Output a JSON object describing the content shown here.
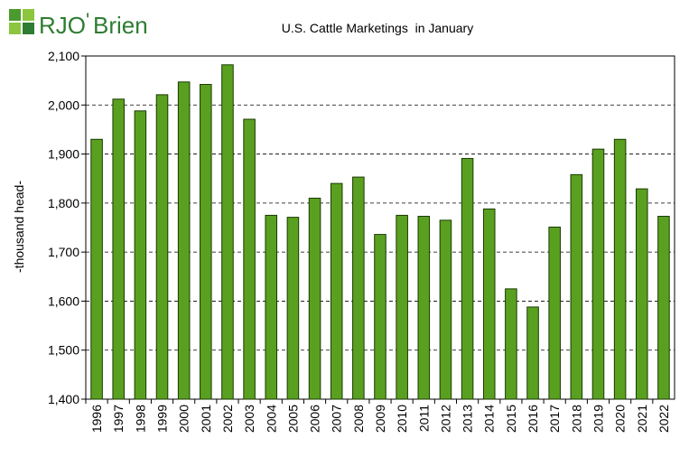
{
  "logo": {
    "text_rj": "RJO",
    "text_apostrophe": "'",
    "text_brien": "Brien",
    "mark_color": "#4a9a2e",
    "text_color": "#2e7d32"
  },
  "chart_data": {
    "type": "bar",
    "title": "U.S. Cattle Marketings  in January",
    "ylabel": "-thousand head-",
    "xlabel": "",
    "categories": [
      "1996",
      "1997",
      "1998",
      "1999",
      "2000",
      "2001",
      "2002",
      "2003",
      "2004",
      "2005",
      "2006",
      "2007",
      "2008",
      "2009",
      "2010",
      "2011",
      "2012",
      "2013",
      "2014",
      "2015",
      "2016",
      "2017",
      "2018",
      "2019",
      "2020",
      "2021",
      "2022"
    ],
    "values": [
      1930,
      2012,
      1988,
      2021,
      2047,
      2042,
      2082,
      1971,
      1775,
      1771,
      1810,
      1840,
      1853,
      1736,
      1775,
      1773,
      1765,
      1891,
      1788,
      1625,
      1588,
      1751,
      1858,
      1910,
      1930,
      1829,
      1773
    ],
    "ylim": [
      1400,
      2100
    ],
    "yticks": [
      1400,
      1500,
      1600,
      1700,
      1800,
      1900,
      2000,
      2100
    ],
    "ytick_labels": [
      "1,400",
      "1,500",
      "1,600",
      "1,700",
      "1,800",
      "1,900",
      "2,000",
      "2,100"
    ],
    "grid": true,
    "bar_color": "#5aa020",
    "bar_edge_color": "#1a3a00"
  }
}
